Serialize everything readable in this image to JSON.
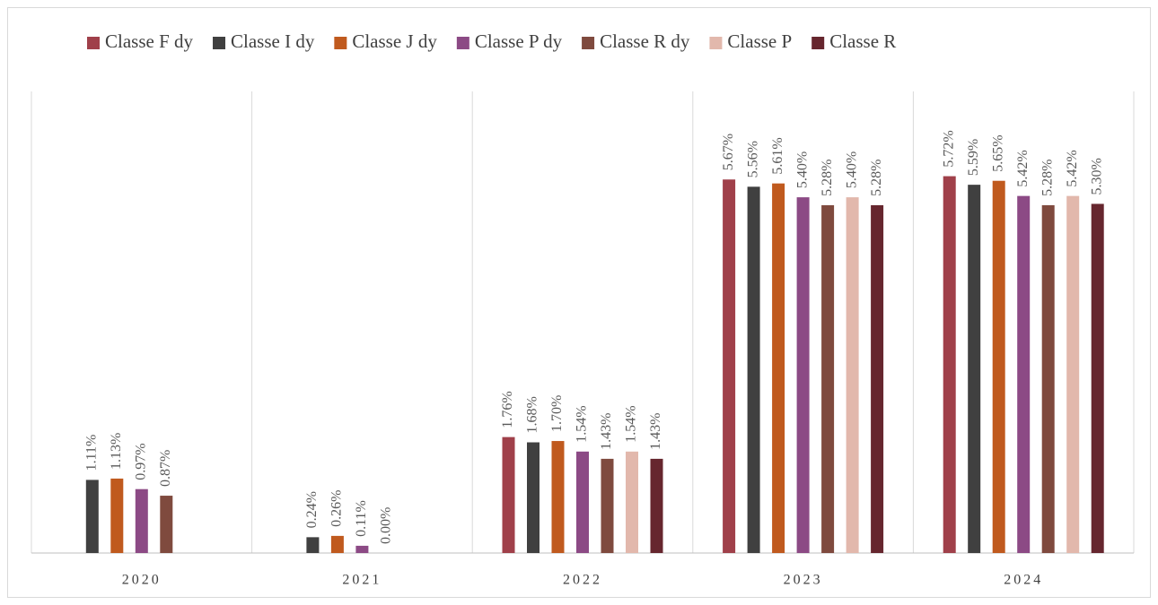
{
  "chart_data": {
    "type": "bar",
    "categories": [
      "2020",
      "2021",
      "2022",
      "2023",
      "2024"
    ],
    "series": [
      {
        "name": "Classe F dy",
        "color": "#a0404a",
        "values": [
          null,
          null,
          1.76,
          5.67,
          5.72
        ],
        "value_labels": [
          null,
          null,
          "1.76%",
          "5.67%",
          "5.72%"
        ]
      },
      {
        "name": "Classe I dy",
        "color": "#404040",
        "values": [
          1.11,
          0.24,
          1.68,
          5.56,
          5.59
        ],
        "value_labels": [
          "1.11%",
          "0.24%",
          "1.68%",
          "5.56%",
          "5.59%"
        ]
      },
      {
        "name": "Classe J dy",
        "color": "#c05a1e",
        "values": [
          1.13,
          0.26,
          1.7,
          5.61,
          5.65
        ],
        "value_labels": [
          "1.13%",
          "0.26%",
          "1.70%",
          "5.61%",
          "5.65%"
        ]
      },
      {
        "name": "Classe P dy",
        "color": "#8c4a85",
        "values": [
          0.97,
          0.11,
          1.54,
          5.4,
          5.42
        ],
        "value_labels": [
          "0.97%",
          "0.11%",
          "1.54%",
          "5.40%",
          "5.42%"
        ]
      },
      {
        "name": "Classe R dy",
        "color": "#7f4a3e",
        "values": [
          0.87,
          0.0,
          1.43,
          5.28,
          5.28
        ],
        "value_labels": [
          "0.87%",
          "0.00%",
          "1.43%",
          "5.28%",
          "5.28%"
        ]
      },
      {
        "name": "Classe P",
        "color": "#e2b8ac",
        "values": [
          null,
          null,
          1.54,
          5.4,
          5.42
        ],
        "value_labels": [
          null,
          null,
          "1.54%",
          "5.40%",
          "5.42%"
        ]
      },
      {
        "name": "Classe R",
        "color": "#66262e",
        "values": [
          null,
          null,
          1.43,
          5.28,
          5.3
        ],
        "value_labels": [
          null,
          null,
          "1.43%",
          "5.28%",
          "5.30%"
        ]
      }
    ],
    "legend": "top",
    "grid": true
  }
}
